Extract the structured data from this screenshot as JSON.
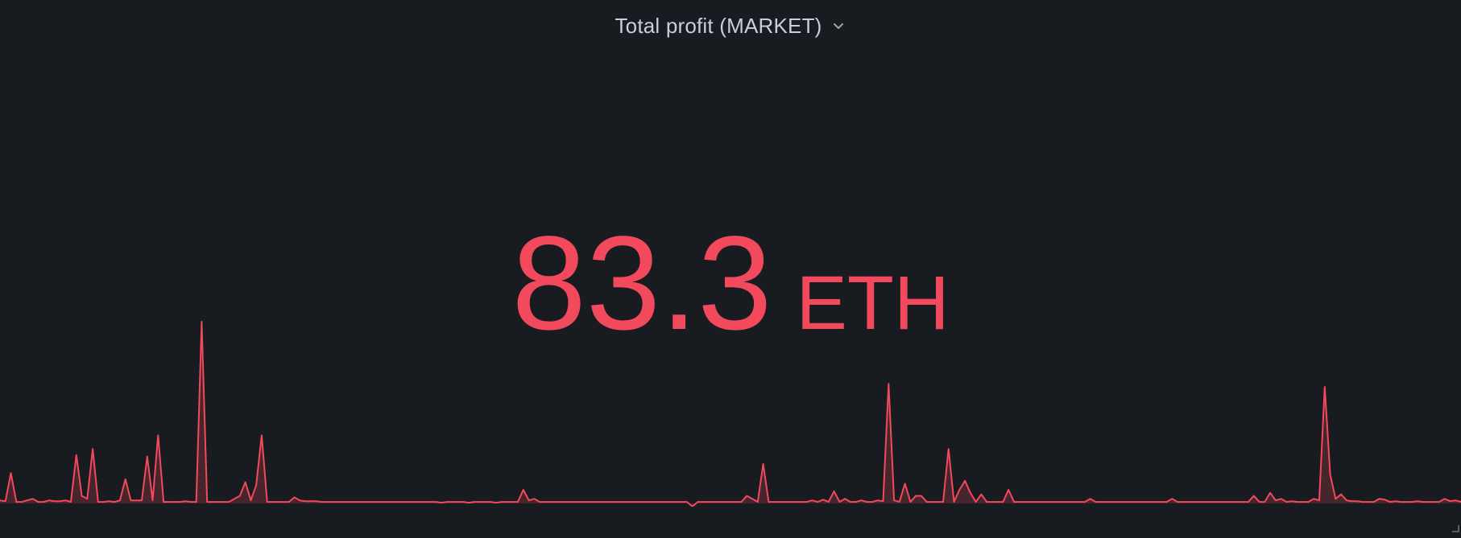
{
  "panel": {
    "title": "Total profit (MARKET)",
    "menu_icon": "chevron-down-icon"
  },
  "stat": {
    "value": "83.3",
    "unit": "ETH"
  },
  "colors": {
    "background": "#181b1f",
    "accent": "#f2495c",
    "title": "#ccccdc"
  },
  "chart_data": {
    "type": "area",
    "ylim": [
      0,
      12
    ],
    "grid": false,
    "series": [
      {
        "values": [
          0.2,
          0.15,
          2,
          0.1,
          0.1,
          0.2,
          0.3,
          0.1,
          0.1,
          0.2,
          0.15,
          0.15,
          0.2,
          0.1,
          3.2,
          0.5,
          0.3,
          3.6,
          0.1,
          0.1,
          0.15,
          0.1,
          0.2,
          1.6,
          0.2,
          0.2,
          0.2,
          3.1,
          0.2,
          4.5,
          0.1,
          0.1,
          0.1,
          0.1,
          0.15,
          0.1,
          0.1,
          12,
          0.1,
          0.1,
          0.1,
          0.1,
          0.1,
          0.3,
          0.5,
          1.4,
          0.2,
          1.2,
          4.5,
          0.1,
          0.1,
          0.1,
          0.1,
          0.1,
          0.4,
          0.2,
          0.15,
          0.15,
          0.15,
          0.1,
          0.1,
          0.1,
          0.1,
          0.1,
          0.1,
          0.1,
          0.1,
          0.1,
          0.1,
          0.1,
          0.1,
          0.1,
          0.1,
          0.1,
          0.1,
          0.1,
          0.1,
          0.1,
          0.1,
          0.1,
          0.1,
          0.05,
          0.1,
          0.1,
          0.1,
          0.1,
          0.05,
          0.1,
          0.1,
          0.1,
          0.1,
          0.05,
          0.1,
          0.1,
          0.1,
          0.1,
          0.9,
          0.2,
          0.3,
          0.1,
          0.1,
          0.1,
          0.1,
          0.1,
          0.1,
          0.1,
          0.1,
          0.1,
          0.1,
          0.1,
          0.1,
          0.1,
          0.1,
          0.1,
          0.1,
          0.1,
          0.1,
          0.1,
          0.1,
          0.1,
          0.1,
          0.1,
          0.1,
          0.1,
          0.1,
          0.1,
          0.1,
          -0.2,
          0.1,
          0.1,
          0.1,
          0.1,
          0.1,
          0.1,
          0.1,
          0.1,
          0.1,
          0.5,
          0.3,
          0.1,
          2.6,
          0.1,
          0.1,
          0.1,
          0.1,
          0.1,
          0.1,
          0.1,
          0.1,
          0.2,
          0.1,
          0.25,
          0.1,
          0.8,
          0.1,
          0.3,
          0.1,
          0.1,
          0.2,
          0.1,
          0.1,
          0.2,
          0.15,
          7.9,
          0.2,
          0.1,
          1.3,
          0.1,
          0.5,
          0.5,
          0.1,
          0.1,
          0.1,
          0.1,
          3.6,
          0.1,
          0.9,
          1.5,
          0.7,
          0.1,
          0.6,
          0.1,
          0.1,
          0.1,
          0.1,
          0.9,
          0.1,
          0.1,
          0.1,
          0.1,
          0.1,
          0.1,
          0.1,
          0.1,
          0.1,
          0.1,
          0.1,
          0.1,
          0.1,
          0.1,
          0.3,
          0.1,
          0.1,
          0.1,
          0.1,
          0.1,
          0.1,
          0.1,
          0.1,
          0.1,
          0.1,
          0.1,
          0.1,
          0.1,
          0.1,
          0.3,
          0.1,
          0.1,
          0.1,
          0.1,
          0.1,
          0.1,
          0.1,
          0.1,
          0.1,
          0.1,
          0.1,
          0.1,
          0.1,
          0.1,
          0.5,
          0.1,
          0.1,
          0.7,
          0.2,
          0.3,
          0.1,
          0.15,
          0.1,
          0.1,
          0.1,
          0.3,
          0.2,
          7.7,
          1.9,
          0.3,
          0.6,
          0.2,
          0.15,
          0.15,
          0.1,
          0.1,
          0.1,
          0.3,
          0.25,
          0.1,
          0.15,
          0.1,
          0.1,
          0.1,
          0.15,
          0.1,
          0.1,
          0.1,
          0.1,
          0.3,
          0.15,
          0.2,
          0.1
        ]
      }
    ]
  }
}
